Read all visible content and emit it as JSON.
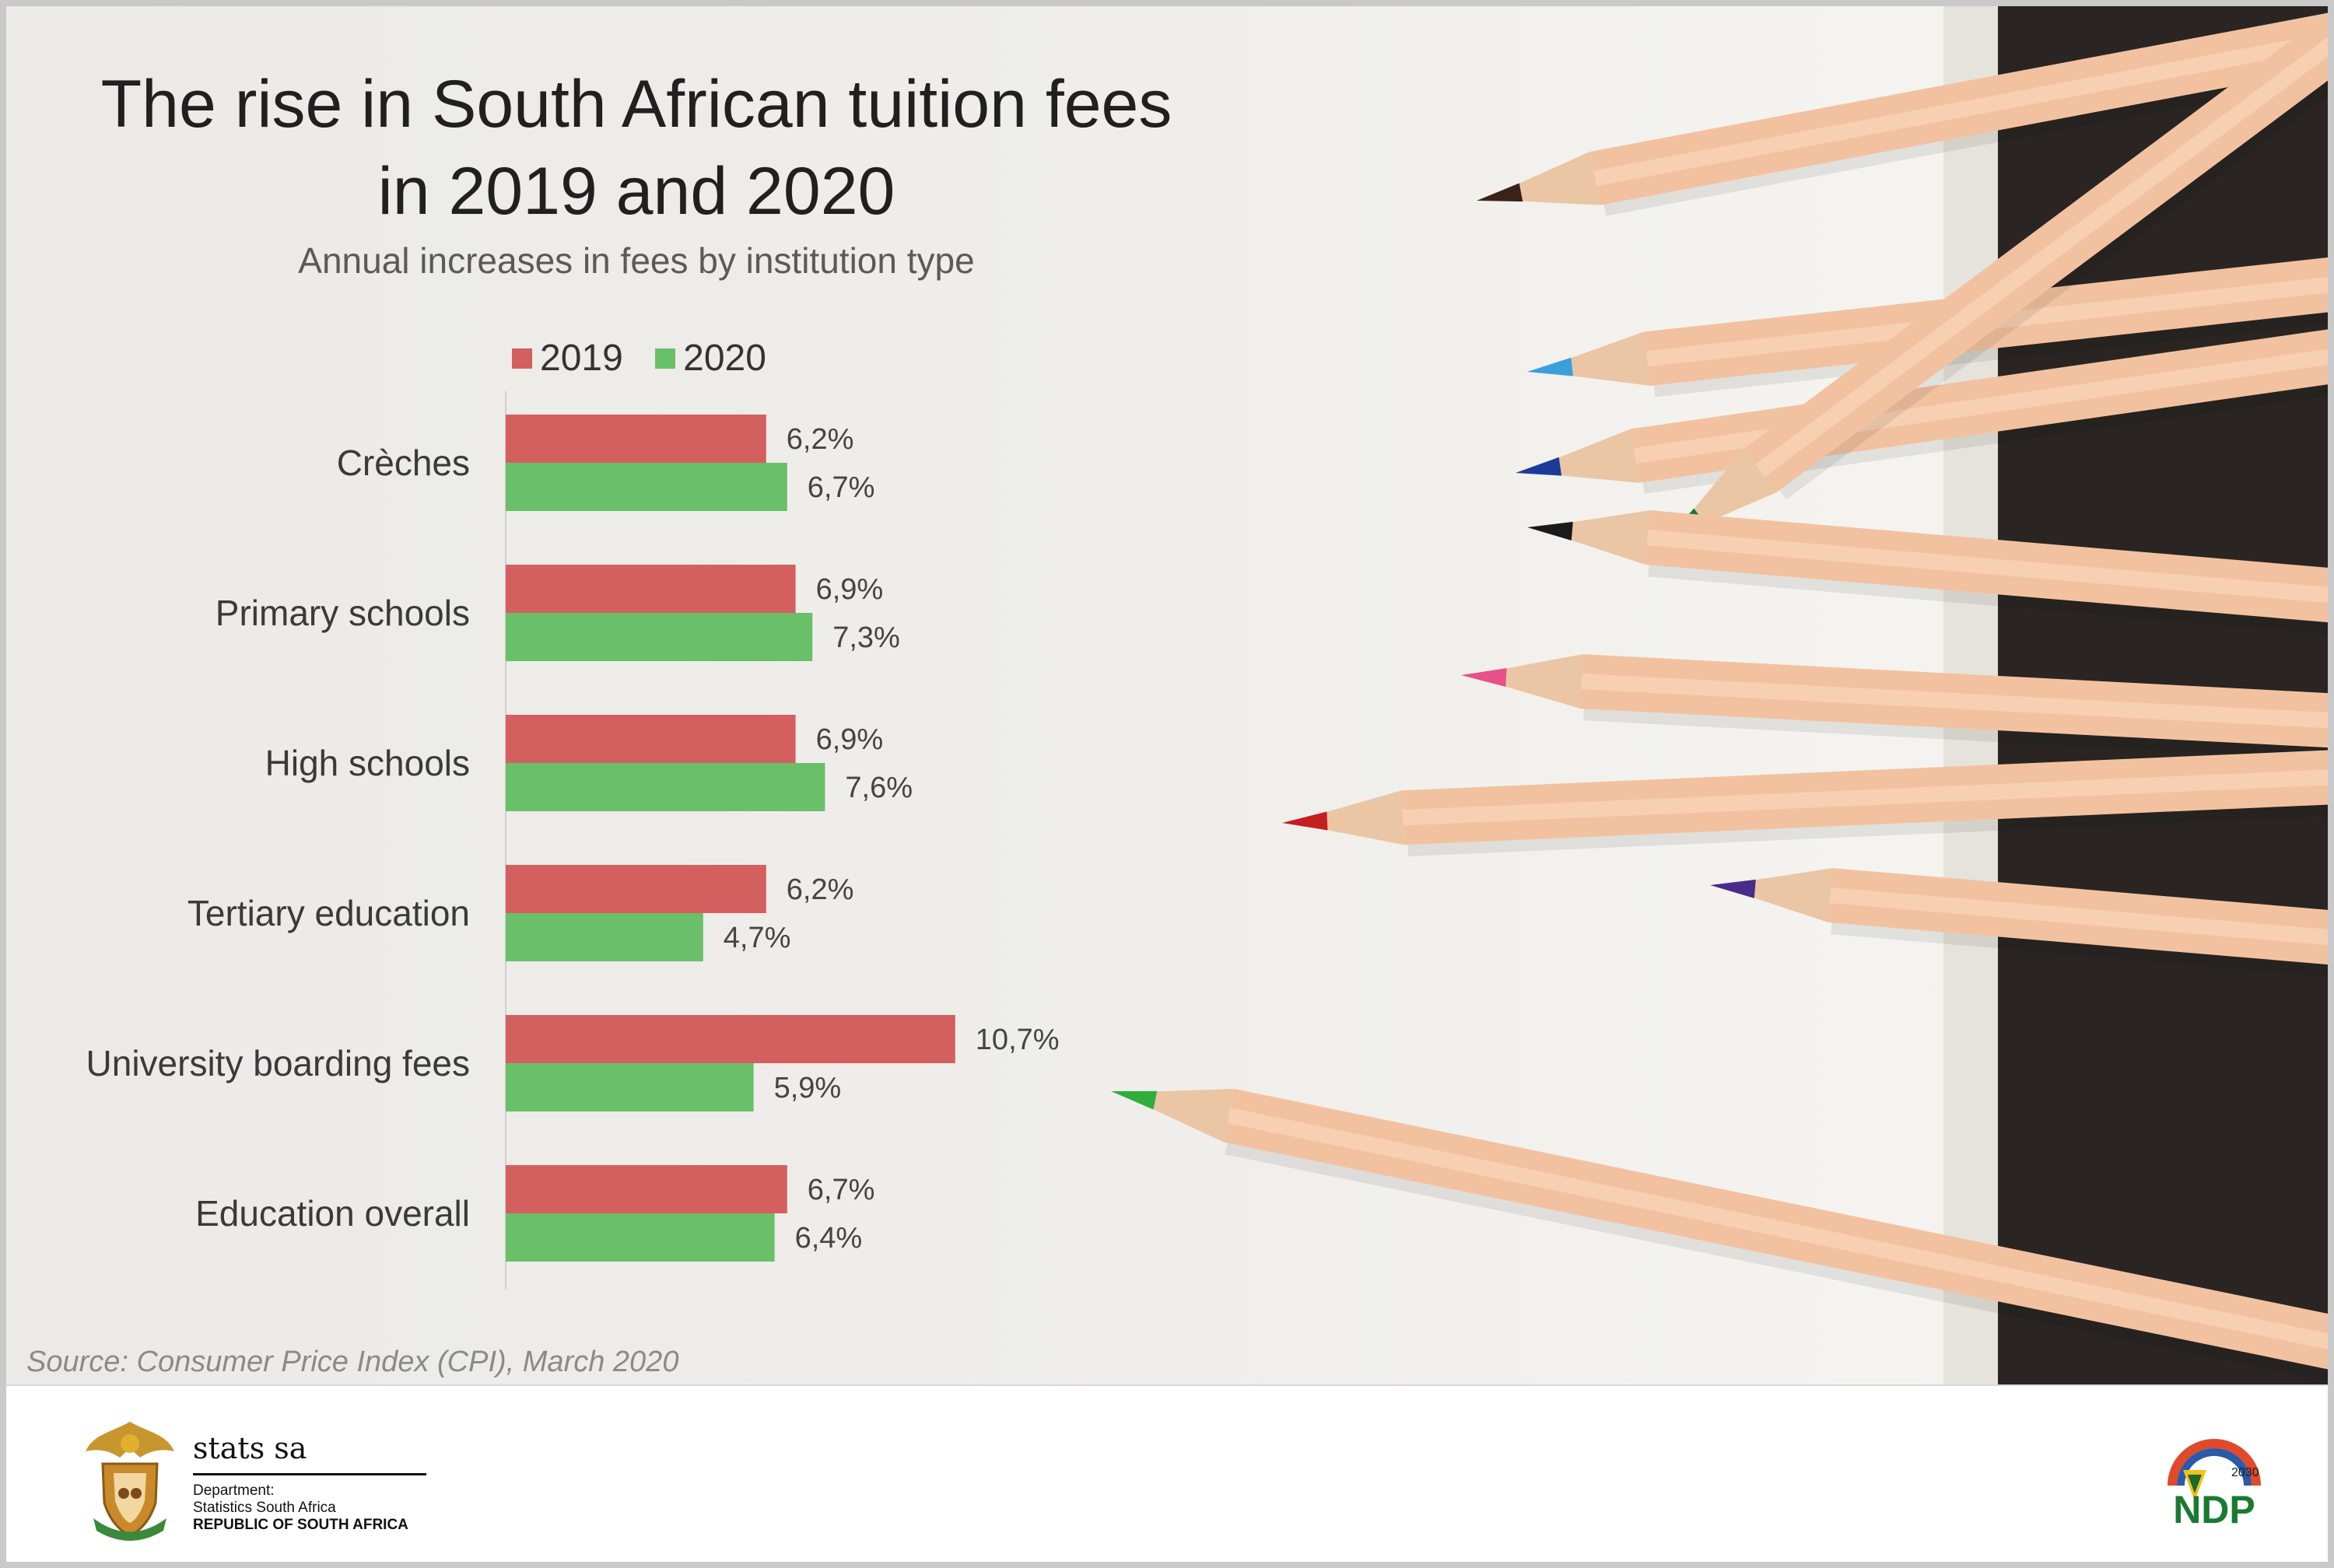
{
  "header": {
    "title_line1": "The rise in South African tuition fees",
    "title_line2": "in 2019 and 2020",
    "subtitle": "Annual increases in fees by institution type"
  },
  "legend": [
    {
      "label": "2019",
      "color": "#d45f5f"
    },
    {
      "label": "2020",
      "color": "#6abf69"
    }
  ],
  "chart_data": {
    "type": "bar",
    "orientation": "horizontal",
    "categories": [
      "Crèches",
      "Primary schools",
      "High schools",
      "Tertiary education",
      "University boarding fees",
      "Education overall"
    ],
    "series": [
      {
        "name": "2019",
        "color": "#d45f5f",
        "values": [
          6.2,
          6.9,
          6.9,
          6.2,
          10.7,
          6.7
        ],
        "labels": [
          "6,2%",
          "6,9%",
          "6,9%",
          "6,2%",
          "10,7%",
          "6,7%"
        ]
      },
      {
        "name": "2020",
        "color": "#6abf69",
        "values": [
          6.7,
          7.3,
          7.6,
          4.7,
          5.9,
          6.4
        ],
        "labels": [
          "6,7%",
          "7,3%",
          "7,6%",
          "4,7%",
          "5,9%",
          "6,4%"
        ]
      }
    ],
    "title": "The rise in South African tuition fees in 2019 and 2020",
    "subtitle": "Annual increases in fees by institution type",
    "legend_position": "top",
    "grid": false
  },
  "source": "Source: Consumer Price Index (CPI), March 2020",
  "footer": {
    "org_name": "stats sa",
    "dept_line1": "Department:",
    "dept_line2": "Statistics South Africa",
    "dept_line3": "REPUBLIC OF SOUTH AFRICA",
    "ndp_text": "NDP",
    "ndp_year": "2030"
  }
}
